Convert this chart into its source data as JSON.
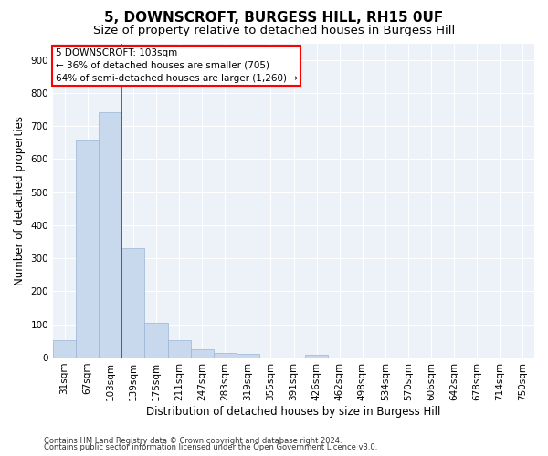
{
  "title": "5, DOWNSCROFT, BURGESS HILL, RH15 0UF",
  "subtitle": "Size of property relative to detached houses in Burgess Hill",
  "xlabel": "Distribution of detached houses by size in Burgess Hill",
  "ylabel": "Number of detached properties",
  "footnote1": "Contains HM Land Registry data © Crown copyright and database right 2024.",
  "footnote2": "Contains public sector information licensed under the Open Government Licence v3.0.",
  "categories": [
    "31sqm",
    "67sqm",
    "103sqm",
    "139sqm",
    "175sqm",
    "211sqm",
    "247sqm",
    "283sqm",
    "319sqm",
    "355sqm",
    "391sqm",
    "426sqm",
    "462sqm",
    "498sqm",
    "534sqm",
    "570sqm",
    "606sqm",
    "642sqm",
    "678sqm",
    "714sqm",
    "750sqm"
  ],
  "values": [
    52,
    657,
    743,
    330,
    106,
    53,
    26,
    15,
    10,
    0,
    0,
    8,
    0,
    0,
    0,
    0,
    0,
    0,
    0,
    0,
    0
  ],
  "bar_color": "#c8d8ed",
  "bar_edgecolor": "#9ab4d4",
  "highlight_line_index": 2,
  "highlight_line_color": "red",
  "annotation_text": "5 DOWNSCROFT: 103sqm\n← 36% of detached houses are smaller (705)\n64% of semi-detached houses are larger (1,260) →",
  "annotation_box_color": "white",
  "annotation_box_edgecolor": "red",
  "ylim": [
    0,
    950
  ],
  "yticks": [
    0,
    100,
    200,
    300,
    400,
    500,
    600,
    700,
    800,
    900
  ],
  "background_color": "#edf1f8",
  "grid_color": "white",
  "title_fontsize": 11,
  "subtitle_fontsize": 9.5,
  "axis_label_fontsize": 8.5,
  "tick_fontsize": 7.5,
  "annotation_fontsize": 7.5,
  "footnote_fontsize": 6
}
